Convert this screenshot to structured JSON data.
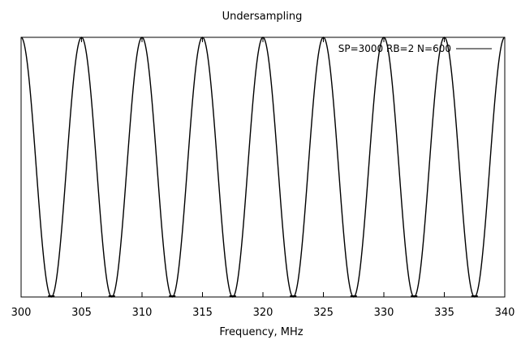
{
  "chart_data": {
    "type": "line",
    "title": "Undersampling",
    "xlabel": "Frequency, MHz",
    "ylabel": "",
    "xlim": [
      300,
      340
    ],
    "ylim": [
      0,
      1
    ],
    "grid": false,
    "legend_position": "top-right",
    "x_ticks": [
      300,
      305,
      310,
      315,
      320,
      325,
      330,
      335,
      340
    ],
    "x_tick_labels": [
      "300",
      "305",
      "310",
      "315",
      "320",
      "325",
      "330",
      "335",
      "340"
    ],
    "series": [
      {
        "name": "SP=3000 RB=2 N=600",
        "color": "#000000",
        "period_mhz": 5,
        "peak_x": [
          300,
          305,
          310,
          315,
          320,
          325,
          330,
          335,
          340
        ],
        "trough_x": [
          302.5,
          307.5,
          312.5,
          317.5,
          322.5,
          327.5,
          332.5,
          337.5
        ],
        "peak_y": 1,
        "trough_y": 0
      }
    ]
  }
}
